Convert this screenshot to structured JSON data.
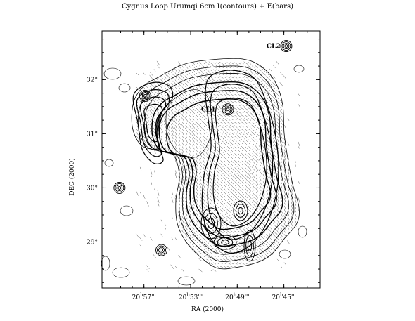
{
  "chart_data": {
    "type": "contour",
    "title": "Cygnus Loop Urumqi 6cm I(contours) + E(bars)",
    "xlabel": "RA (2000)",
    "ylabel": "DEC (2000)",
    "x_ticks": [
      {
        "value": 57,
        "hour": "20",
        "hunit": "h",
        "min": "57",
        "munit": "m"
      },
      {
        "value": 53,
        "hour": "20",
        "hunit": "h",
        "min": "53",
        "munit": "m"
      },
      {
        "value": 49,
        "hour": "20",
        "hunit": "h",
        "min": "49",
        "munit": "m"
      },
      {
        "value": 45,
        "hour": "20",
        "hunit": "h",
        "min": "45",
        "munit": "m"
      }
    ],
    "y_ticks": [
      {
        "value": 32,
        "label": "32°"
      },
      {
        "value": 31,
        "label": "31°"
      },
      {
        "value": 30,
        "label": "30°"
      },
      {
        "value": 29,
        "label": "29°"
      }
    ],
    "xlim_ra_min": [
      60.6,
      41.9
    ],
    "ylim_dec_deg": [
      28.15,
      32.9
    ],
    "annotations": [
      {
        "label": "CL2",
        "ra_min": 45.3,
        "dec_deg": 32.62
      },
      {
        "label": "CL4",
        "ra_min": 50.9,
        "dec_deg": 31.45
      }
    ],
    "sources": [
      {
        "ra_min": 44.8,
        "dec_deg": 32.62
      },
      {
        "ra_min": 49.8,
        "dec_deg": 31.45
      },
      {
        "ra_min": 56.9,
        "dec_deg": 31.7
      },
      {
        "ra_min": 59.1,
        "dec_deg": 30.0
      },
      {
        "ra_min": 55.5,
        "dec_deg": 28.85
      }
    ]
  }
}
